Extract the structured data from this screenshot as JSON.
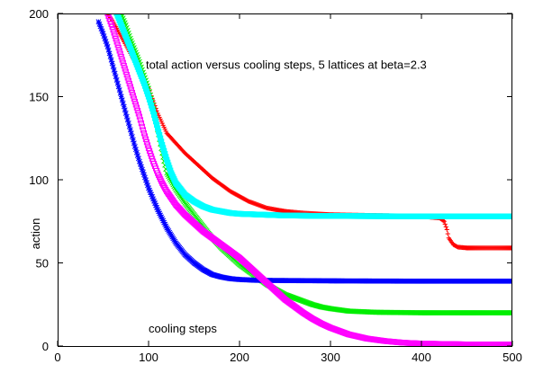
{
  "chart_data": {
    "type": "scatter",
    "title": "",
    "xlabel": "cooling steps",
    "ylabel": "action",
    "xlim": [
      0,
      500
    ],
    "ylim": [
      0,
      200
    ],
    "xticks": [
      0,
      100,
      200,
      300,
      400,
      500
    ],
    "yticks": [
      0,
      50,
      100,
      150,
      200
    ],
    "grid": false,
    "legend": "none",
    "annotations": [
      {
        "text": "total action versus cooling steps, 5 lattices at beta=2.3",
        "x": 97,
        "y": 169
      }
    ],
    "series": [
      {
        "color": "#ff0000",
        "marker": "plus",
        "points": [
          [
            55,
            200
          ],
          [
            60,
            196
          ],
          [
            70,
            186
          ],
          [
            80,
            176
          ],
          [
            90,
            166
          ],
          [
            95,
            160
          ],
          [
            100,
            155
          ],
          [
            104,
            149
          ],
          [
            108,
            143
          ],
          [
            110,
            140
          ],
          [
            115,
            134
          ],
          [
            120,
            128
          ],
          [
            130,
            122
          ],
          [
            140,
            116
          ],
          [
            150,
            111
          ],
          [
            170,
            101
          ],
          [
            190,
            93
          ],
          [
            210,
            87
          ],
          [
            230,
            83
          ],
          [
            250,
            81
          ],
          [
            270,
            80
          ],
          [
            300,
            79
          ],
          [
            350,
            78.5
          ],
          [
            400,
            78
          ],
          [
            420,
            77
          ],
          [
            425,
            75
          ],
          [
            428,
            70
          ],
          [
            430,
            65
          ],
          [
            435,
            61
          ],
          [
            440,
            59.5
          ],
          [
            450,
            59
          ],
          [
            500,
            59
          ]
        ]
      },
      {
        "color": "#00ee00",
        "marker": "cross",
        "points": [
          [
            70,
            200
          ],
          [
            75,
            193
          ],
          [
            80,
            185
          ],
          [
            85,
            178
          ],
          [
            90,
            171
          ],
          [
            95,
            163
          ],
          [
            100,
            155
          ],
          [
            105,
            145
          ],
          [
            110,
            130
          ],
          [
            115,
            116
          ],
          [
            120,
            104
          ],
          [
            130,
            94
          ],
          [
            140,
            86
          ],
          [
            150,
            79
          ],
          [
            160,
            72
          ],
          [
            170,
            65
          ],
          [
            180,
            59
          ],
          [
            190,
            54
          ],
          [
            200,
            49
          ],
          [
            210,
            45
          ],
          [
            220,
            41
          ],
          [
            230,
            37
          ],
          [
            240,
            34
          ],
          [
            250,
            31
          ],
          [
            260,
            29
          ],
          [
            270,
            27
          ],
          [
            280,
            25
          ],
          [
            290,
            23.5
          ],
          [
            300,
            22.5
          ],
          [
            320,
            21
          ],
          [
            350,
            20.3
          ],
          [
            400,
            20
          ],
          [
            500,
            20
          ]
        ]
      },
      {
        "color": "#0000ff",
        "marker": "star",
        "points": [
          [
            45,
            195
          ],
          [
            50,
            188
          ],
          [
            55,
            180
          ],
          [
            60,
            170
          ],
          [
            65,
            160
          ],
          [
            70,
            150
          ],
          [
            75,
            140
          ],
          [
            80,
            130
          ],
          [
            85,
            120
          ],
          [
            90,
            111
          ],
          [
            95,
            103
          ],
          [
            100,
            95
          ],
          [
            110,
            82
          ],
          [
            120,
            71
          ],
          [
            130,
            62
          ],
          [
            140,
            55
          ],
          [
            150,
            50
          ],
          [
            160,
            46
          ],
          [
            170,
            43
          ],
          [
            180,
            41.5
          ],
          [
            190,
            40.5
          ],
          [
            200,
            40
          ],
          [
            220,
            39.5
          ],
          [
            300,
            39.2
          ],
          [
            400,
            39
          ],
          [
            500,
            39
          ]
        ]
      },
      {
        "color": "#ff00ff",
        "marker": "square",
        "points": [
          [
            55,
            200
          ],
          [
            60,
            192
          ],
          [
            65,
            183
          ],
          [
            70,
            174
          ],
          [
            75,
            165
          ],
          [
            80,
            156
          ],
          [
            85,
            147
          ],
          [
            90,
            138
          ],
          [
            95,
            128
          ],
          [
            100,
            119
          ],
          [
            105,
            111
          ],
          [
            110,
            104
          ],
          [
            115,
            98
          ],
          [
            120,
            93
          ],
          [
            130,
            85
          ],
          [
            140,
            79
          ],
          [
            150,
            74
          ],
          [
            160,
            69
          ],
          [
            170,
            65
          ],
          [
            180,
            61
          ],
          [
            190,
            57
          ],
          [
            200,
            53
          ],
          [
            210,
            48
          ],
          [
            220,
            43
          ],
          [
            230,
            38
          ],
          [
            240,
            33
          ],
          [
            250,
            28
          ],
          [
            260,
            24
          ],
          [
            270,
            20
          ],
          [
            280,
            16.5
          ],
          [
            290,
            13.5
          ],
          [
            300,
            11
          ],
          [
            320,
            7
          ],
          [
            340,
            4.5
          ],
          [
            360,
            3
          ],
          [
            380,
            2
          ],
          [
            400,
            1.5
          ],
          [
            450,
            1
          ],
          [
            500,
            1
          ]
        ]
      },
      {
        "color": "#00ffff",
        "marker": "filled-square",
        "points": [
          [
            65,
            200
          ],
          [
            70,
            193
          ],
          [
            75,
            186
          ],
          [
            80,
            179
          ],
          [
            85,
            172
          ],
          [
            90,
            165
          ],
          [
            95,
            158
          ],
          [
            100,
            150
          ],
          [
            105,
            141
          ],
          [
            110,
            131
          ],
          [
            115,
            121
          ],
          [
            120,
            112
          ],
          [
            125,
            104
          ],
          [
            130,
            98
          ],
          [
            140,
            91
          ],
          [
            150,
            87
          ],
          [
            160,
            84
          ],
          [
            170,
            82
          ],
          [
            180,
            81
          ],
          [
            190,
            80
          ],
          [
            200,
            79.5
          ],
          [
            250,
            78.5
          ],
          [
            300,
            78.2
          ],
          [
            400,
            78
          ],
          [
            500,
            78
          ]
        ]
      }
    ]
  }
}
